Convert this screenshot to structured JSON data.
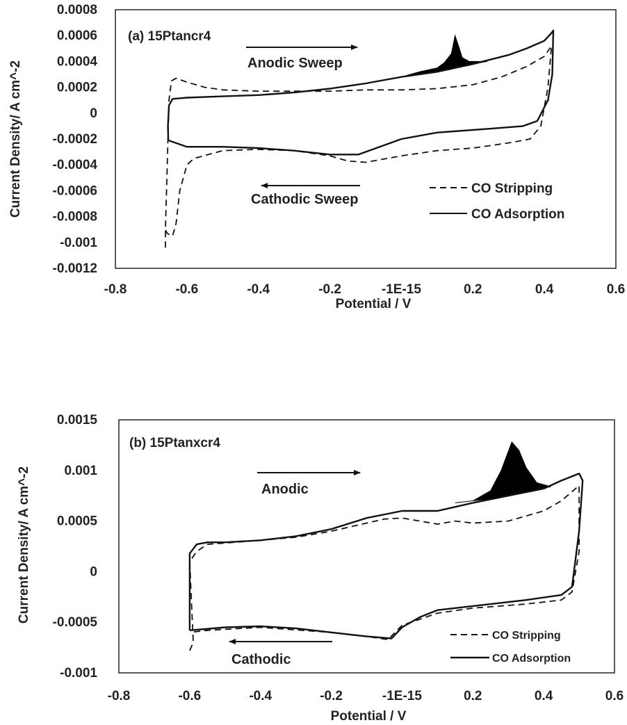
{
  "chart_data": [
    {
      "type": "line",
      "panel_label": "(a) 15Ptancr4",
      "xlabel": "Potential / V",
      "ylabel": "Current Density/ A cm^-2",
      "xlim": [
        -0.8,
        0.6
      ],
      "ylim": [
        -0.0012,
        0.0008
      ],
      "x_ticks": [
        "-0.8",
        "-0.6",
        "-0.4",
        "-0.2",
        "-1E-15",
        "0.2",
        "0.4",
        "0.6"
      ],
      "y_ticks": [
        "0.0008",
        "0.0006",
        "0.0004",
        "0.0002",
        "0",
        "-0.0002",
        "-0.0004",
        "-0.0006",
        "-0.0008",
        "-0.001",
        "-0.0012"
      ],
      "grid": false,
      "legend_position": "bottom-right",
      "annotations": {
        "anodic": "Anodic Sweep",
        "cathodic": "Cathodic Sweep"
      },
      "series": [
        {
          "name": "CO Stripping",
          "style": "dashed",
          "points": [
            [
              -0.66,
              -0.00104
            ],
            [
              -0.66,
              -0.0009
            ],
            [
              -0.655,
              -0.0004
            ],
            [
              -0.65,
              0.0001
            ],
            [
              -0.643,
              0.00025
            ],
            [
              -0.63,
              0.00027
            ],
            [
              -0.6,
              0.00024
            ],
            [
              -0.55,
              0.0002
            ],
            [
              -0.5,
              0.00018
            ],
            [
              -0.4,
              0.00017
            ],
            [
              -0.3,
              0.00017
            ],
            [
              -0.2,
              0.00017
            ],
            [
              -0.1,
              0.00018
            ],
            [
              0.0,
              0.00018
            ],
            [
              0.1,
              0.00019
            ],
            [
              0.2,
              0.00022
            ],
            [
              0.28,
              0.00028
            ],
            [
              0.35,
              0.00036
            ],
            [
              0.4,
              0.00044
            ],
            [
              0.42,
              0.00052
            ],
            [
              0.41,
              0.0002
            ],
            [
              0.39,
              -0.0001
            ],
            [
              0.36,
              -0.0002
            ],
            [
              0.3,
              -0.00023
            ],
            [
              0.2,
              -0.00027
            ],
            [
              0.1,
              -0.00029
            ],
            [
              0.0,
              -0.00033
            ],
            [
              -0.06,
              -0.00036
            ],
            [
              -0.1,
              -0.00038
            ],
            [
              -0.15,
              -0.00037
            ],
            [
              -0.2,
              -0.00033
            ],
            [
              -0.3,
              -0.00029
            ],
            [
              -0.4,
              -0.00028
            ],
            [
              -0.5,
              -0.00029
            ],
            [
              -0.58,
              -0.00035
            ],
            [
              -0.6,
              -0.0004
            ],
            [
              -0.62,
              -0.0006
            ],
            [
              -0.63,
              -0.00085
            ],
            [
              -0.64,
              -0.00095
            ],
            [
              -0.655,
              -0.00093
            ],
            [
              -0.66,
              -0.0009
            ]
          ]
        },
        {
          "name": "CO Adsorption",
          "style": "solid",
          "points": [
            [
              -0.652,
              -0.00021
            ],
            [
              -0.653,
              -0.0001
            ],
            [
              -0.65,
              6e-05
            ],
            [
              -0.64,
              0.00011
            ],
            [
              -0.6,
              0.00012
            ],
            [
              -0.5,
              0.00013
            ],
            [
              -0.4,
              0.00014
            ],
            [
              -0.3,
              0.00016
            ],
            [
              -0.2,
              0.00019
            ],
            [
              -0.1,
              0.00023
            ],
            [
              0.0,
              0.00028
            ],
            [
              0.1,
              0.00032
            ],
            [
              0.2,
              0.00038
            ],
            [
              0.3,
              0.00045
            ],
            [
              0.35,
              0.0005
            ],
            [
              0.4,
              0.00056
            ],
            [
              0.42,
              0.00062
            ],
            [
              0.425,
              0.00064
            ],
            [
              0.422,
              0.0003
            ],
            [
              0.41,
              0.0001
            ],
            [
              0.38,
              -6e-05
            ],
            [
              0.34,
              -0.0001
            ],
            [
              0.25,
              -0.00012
            ],
            [
              0.1,
              -0.00015
            ],
            [
              0.0,
              -0.0002
            ],
            [
              -0.07,
              -0.00027
            ],
            [
              -0.12,
              -0.00032
            ],
            [
              -0.2,
              -0.00032
            ],
            [
              -0.3,
              -0.00029
            ],
            [
              -0.4,
              -0.00027
            ],
            [
              -0.5,
              -0.00026
            ],
            [
              -0.6,
              -0.00026
            ],
            [
              -0.652,
              -0.00021
            ]
          ]
        }
      ],
      "filled_peak": {
        "x": [
          0.0,
          0.05,
          0.1,
          0.12,
          0.14,
          0.15,
          0.16,
          0.17,
          0.19,
          0.22,
          0.24
        ],
        "upper": [
          0.00028,
          0.00032,
          0.00035,
          0.00039,
          0.00046,
          0.0006,
          0.00052,
          0.00043,
          0.0004,
          0.0004,
          0.0004
        ],
        "lower": [
          0.00028,
          0.0003,
          0.00032,
          0.00033,
          0.00034,
          0.00035,
          0.00036,
          0.00036,
          0.00037,
          0.00039,
          0.0004
        ]
      }
    },
    {
      "type": "line",
      "panel_label": "(b) 15Ptanxcr4",
      "xlabel": "Potential / V",
      "ylabel": "Current Density/ A cm^-2",
      "xlim": [
        -0.8,
        0.6
      ],
      "ylim": [
        -0.001,
        0.0015
      ],
      "x_ticks": [
        "-0.8",
        "-0.6",
        "-0.4",
        "-0.2",
        "-1E-15",
        "0.2",
        "0.4",
        "0.6"
      ],
      "y_ticks": [
        "0.0015",
        "0.001",
        "0.0005",
        "0",
        "-0.0005",
        "-0.001"
      ],
      "grid": false,
      "legend_position": "bottom-right",
      "annotations": {
        "anodic": "Anodic",
        "cathodic": "Cathodic"
      },
      "series": [
        {
          "name": "CO Stripping",
          "style": "dashed",
          "points": [
            [
              -0.6,
              -0.00078
            ],
            [
              -0.59,
              -0.0007
            ],
            [
              -0.6,
              0.0001
            ],
            [
              -0.58,
              0.0002
            ],
            [
              -0.55,
              0.00027
            ],
            [
              -0.4,
              0.00031
            ],
            [
              -0.3,
              0.00034
            ],
            [
              -0.2,
              0.0004
            ],
            [
              -0.1,
              0.00048
            ],
            [
              -0.05,
              0.00052
            ],
            [
              0.0,
              0.00053
            ],
            [
              0.05,
              0.0005
            ],
            [
              0.1,
              0.00047
            ],
            [
              0.15,
              0.0005
            ],
            [
              0.2,
              0.00048
            ],
            [
              0.3,
              0.0005
            ],
            [
              0.4,
              0.0006
            ],
            [
              0.45,
              0.0007
            ],
            [
              0.5,
              0.00085
            ],
            [
              0.5,
              0.0002
            ],
            [
              0.48,
              -0.0002
            ],
            [
              0.45,
              -0.00028
            ],
            [
              0.35,
              -0.00032
            ],
            [
              0.2,
              -0.00036
            ],
            [
              0.1,
              -0.00041
            ],
            [
              0.0,
              -0.00053
            ],
            [
              -0.04,
              -0.00067
            ],
            [
              -0.1,
              -0.00064
            ],
            [
              -0.2,
              -0.0006
            ],
            [
              -0.4,
              -0.00055
            ],
            [
              -0.55,
              -0.00058
            ],
            [
              -0.6,
              -0.0006
            ]
          ]
        },
        {
          "name": "CO Adsorption",
          "style": "solid",
          "points": [
            [
              -0.6,
              -0.00058
            ],
            [
              -0.6,
              0.00018
            ],
            [
              -0.58,
              0.00027
            ],
            [
              -0.55,
              0.00029
            ],
            [
              -0.5,
              0.00029
            ],
            [
              -0.4,
              0.00031
            ],
            [
              -0.3,
              0.00035
            ],
            [
              -0.2,
              0.00042
            ],
            [
              -0.1,
              0.00053
            ],
            [
              0.0,
              0.0006
            ],
            [
              0.1,
              0.0006
            ],
            [
              0.2,
              0.00068
            ],
            [
              0.3,
              0.00075
            ],
            [
              0.4,
              0.00082
            ],
            [
              0.45,
              0.0009
            ],
            [
              0.5,
              0.00097
            ],
            [
              0.51,
              0.0009
            ],
            [
              0.5,
              0.0004
            ],
            [
              0.48,
              -0.00015
            ],
            [
              0.45,
              -0.00023
            ],
            [
              0.35,
              -0.00028
            ],
            [
              0.2,
              -0.00034
            ],
            [
              0.1,
              -0.00038
            ],
            [
              0.05,
              -0.00045
            ],
            [
              0.0,
              -0.00055
            ],
            [
              -0.03,
              -0.00066
            ],
            [
              -0.1,
              -0.00064
            ],
            [
              -0.2,
              -0.0006
            ],
            [
              -0.3,
              -0.00056
            ],
            [
              -0.4,
              -0.00054
            ],
            [
              -0.5,
              -0.00055
            ],
            [
              -0.6,
              -0.00058
            ]
          ]
        }
      ],
      "filled_peak": {
        "x": [
          0.15,
          0.2,
          0.25,
          0.28,
          0.31,
          0.33,
          0.35,
          0.38,
          0.42
        ],
        "upper": [
          0.00068,
          0.0007,
          0.0008,
          0.001,
          0.00128,
          0.0012,
          0.00103,
          0.00088,
          0.00084
        ],
        "lower": [
          0.00068,
          0.0007,
          0.00072,
          0.00074,
          0.00076,
          0.00077,
          0.00079,
          0.00081,
          0.00084
        ]
      }
    }
  ]
}
